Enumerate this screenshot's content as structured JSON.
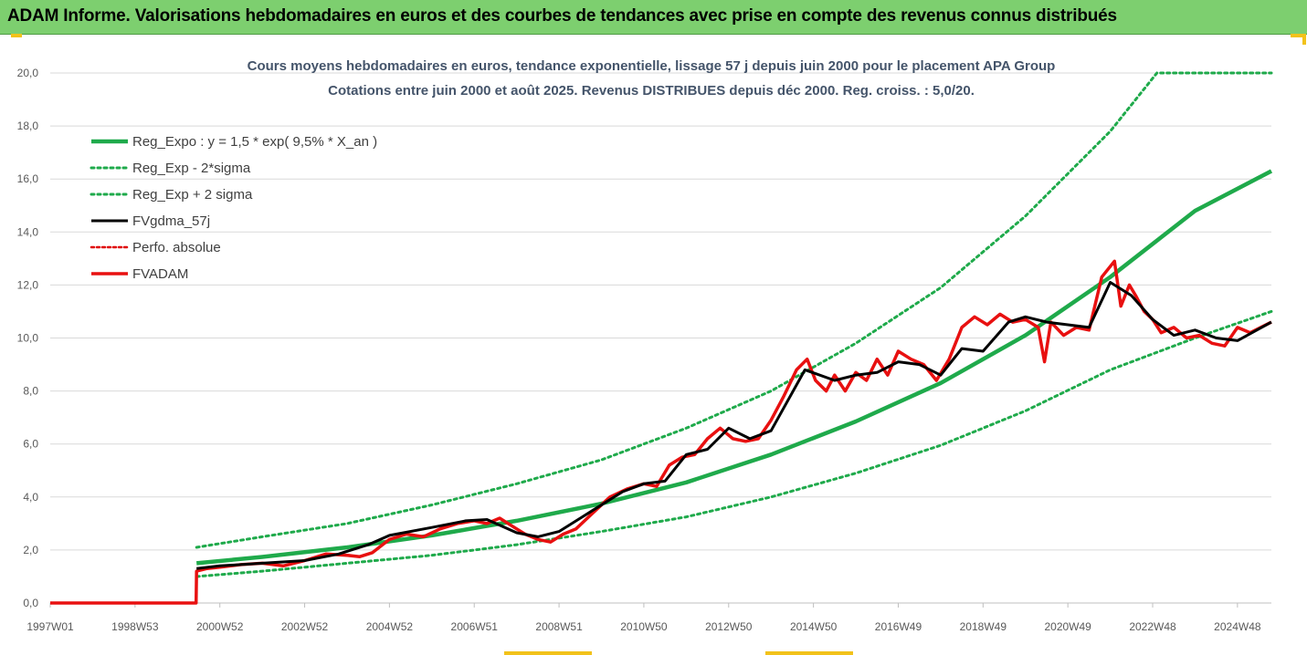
{
  "banner": {
    "title": "ADAM Informe. Valorisations hebdomadaires en euros et des courbes de tendances avec prise en compte des revenus connus distribués"
  },
  "chart_data": {
    "type": "line",
    "title": "Cours moyens hebdomadaires en euros, tendance exponentielle, lissage 57 j depuis juin 2000 pour le placement APA Group",
    "subtitle": "Cotations entre juin 2000 et août 2025. Revenus DISTRIBUES depuis déc 2000. Reg. croiss. : 5,0/20.",
    "xlabel": "",
    "ylabel": "",
    "x_tick_labels": [
      "1997W01",
      "1998W53",
      "2000W52",
      "2002W52",
      "2004W52",
      "2006W51",
      "2008W51",
      "2010W50",
      "2012W50",
      "2014W50",
      "2016W49",
      "2018W49",
      "2020W49",
      "2022W48",
      "2024W48"
    ],
    "x_tick_years": [
      1997.0,
      1999.0,
      2001.0,
      2003.0,
      2005.0,
      2007.0,
      2009.0,
      2011.0,
      2013.0,
      2015.0,
      2017.0,
      2019.0,
      2021.0,
      2023.0,
      2025.0
    ],
    "y_tick_labels": [
      "0,0",
      "2,0",
      "4,0",
      "6,0",
      "8,0",
      "10,0",
      "12,0",
      "14,0",
      "16,0",
      "18,0",
      "20,0"
    ],
    "ylim": [
      0,
      20
    ],
    "xlim": [
      1997.0,
      2025.8
    ],
    "grid": "horizontal",
    "legend_position": "top-left",
    "colors": {
      "reg": "#1faa4b",
      "smooth": "#000000",
      "perfo": "#e00000",
      "fvadam": "#e81010"
    },
    "series": [
      {
        "name": "Reg_Expo : y = 1,5 * exp( 9,5% *  X_an )",
        "style": "solid-green",
        "x": [
          2000.45,
          2002,
          2004,
          2006,
          2008,
          2010,
          2012,
          2014,
          2016,
          2018,
          2020,
          2022,
          2024,
          2025.8
        ],
        "values": [
          1.5,
          1.74,
          2.1,
          2.55,
          3.1,
          3.75,
          4.55,
          5.6,
          6.85,
          8.3,
          10.1,
          12.3,
          14.8,
          16.3
        ]
      },
      {
        "name": "Reg_Exp - 2*sigma",
        "style": "dotted-green",
        "x": [
          2000.45,
          2002,
          2004,
          2006,
          2008,
          2010,
          2012,
          2014,
          2016,
          2018,
          2020,
          2022,
          2024,
          2025.8
        ],
        "values": [
          1.0,
          1.2,
          1.5,
          1.8,
          2.2,
          2.7,
          3.25,
          4.0,
          4.9,
          5.95,
          7.25,
          8.8,
          10.0,
          11.0
        ]
      },
      {
        "name": "Reg_Exp + 2 sigma",
        "style": "dotted-green",
        "x": [
          2000.45,
          2002,
          2004,
          2006,
          2008,
          2010,
          2012,
          2014,
          2016,
          2018,
          2020,
          2022,
          2023.1,
          2024,
          2025.8
        ],
        "values": [
          2.1,
          2.5,
          3.0,
          3.7,
          4.5,
          5.4,
          6.6,
          8.0,
          9.8,
          11.9,
          14.6,
          17.8,
          20.0,
          20.0,
          20.0
        ]
      },
      {
        "name": "FVgdma_57j",
        "style": "solid-black",
        "x": [
          2000.45,
          2001,
          2002,
          2003,
          2003.8,
          2004.5,
          2005,
          2006,
          2006.8,
          2007.3,
          2008,
          2008.5,
          2009,
          2009.8,
          2010.5,
          2011,
          2011.5,
          2012,
          2012.5,
          2013,
          2013.5,
          2014,
          2014.8,
          2015.5,
          2016,
          2016.5,
          2017,
          2017.5,
          2018,
          2018.5,
          2019,
          2019.6,
          2020,
          2020.5,
          2021,
          2021.5,
          2022,
          2022.5,
          2023,
          2023.5,
          2024,
          2024.5,
          2025,
          2025.8
        ],
        "values": [
          1.3,
          1.4,
          1.5,
          1.6,
          1.85,
          2.2,
          2.55,
          2.85,
          3.1,
          3.15,
          2.65,
          2.5,
          2.7,
          3.5,
          4.2,
          4.5,
          4.6,
          5.6,
          5.8,
          6.6,
          6.2,
          6.5,
          8.8,
          8.4,
          8.6,
          8.7,
          9.1,
          9.0,
          8.6,
          9.6,
          9.5,
          10.6,
          10.8,
          10.6,
          10.5,
          10.4,
          12.1,
          11.6,
          10.7,
          10.1,
          10.3,
          10.0,
          9.9,
          10.6
        ]
      },
      {
        "name": "Perfo. absolue",
        "style": "dotted-red",
        "x": [],
        "values": []
      },
      {
        "name": "FVADAM",
        "style": "solid-red",
        "x": [
          1997.0,
          2000.44,
          2000.45,
          2000.7,
          2001,
          2001.5,
          2002,
          2002.5,
          2003,
          2003.5,
          2004,
          2004.3,
          2004.6,
          2005,
          2005.4,
          2005.8,
          2006.2,
          2006.6,
          2007,
          2007.3,
          2007.6,
          2007.9,
          2008.2,
          2008.5,
          2008.8,
          2009.1,
          2009.4,
          2009.8,
          2010.2,
          2010.6,
          2011,
          2011.3,
          2011.6,
          2011.9,
          2012.2,
          2012.5,
          2012.8,
          2013.1,
          2013.4,
          2013.7,
          2014,
          2014.3,
          2014.6,
          2014.85,
          2015.05,
          2015.3,
          2015.5,
          2015.75,
          2016,
          2016.25,
          2016.5,
          2016.75,
          2017,
          2017.3,
          2017.6,
          2017.9,
          2018.2,
          2018.5,
          2018.8,
          2019.1,
          2019.4,
          2019.7,
          2020.0,
          2020.3,
          2020.45,
          2020.6,
          2020.9,
          2021.2,
          2021.5,
          2021.8,
          2022.1,
          2022.25,
          2022.45,
          2022.6,
          2022.8,
          2023.0,
          2023.2,
          2023.5,
          2023.8,
          2024.1,
          2024.4,
          2024.7,
          2025.0,
          2025.3,
          2025.8
        ],
        "values": [
          0,
          0,
          1.2,
          1.3,
          1.35,
          1.45,
          1.5,
          1.4,
          1.6,
          1.85,
          1.8,
          1.75,
          1.9,
          2.4,
          2.6,
          2.5,
          2.8,
          3.0,
          3.1,
          3.0,
          3.2,
          2.9,
          2.6,
          2.4,
          2.3,
          2.6,
          2.8,
          3.4,
          4.0,
          4.3,
          4.5,
          4.4,
          5.2,
          5.5,
          5.6,
          6.2,
          6.6,
          6.2,
          6.1,
          6.2,
          6.9,
          7.8,
          8.8,
          9.2,
          8.4,
          8.0,
          8.6,
          8.0,
          8.7,
          8.4,
          9.2,
          8.6,
          9.5,
          9.2,
          9.0,
          8.4,
          9.2,
          10.4,
          10.8,
          10.5,
          10.9,
          10.6,
          10.7,
          10.4,
          9.1,
          10.6,
          10.1,
          10.4,
          10.3,
          12.3,
          12.9,
          11.2,
          12.0,
          11.6,
          11.0,
          10.7,
          10.2,
          10.4,
          10.0,
          10.1,
          9.8,
          9.7,
          10.4,
          10.2,
          10.6
        ]
      }
    ]
  }
}
